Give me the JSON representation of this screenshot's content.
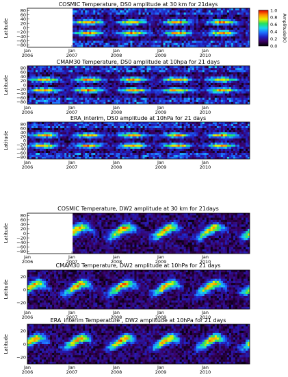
{
  "colorbar": {
    "label": "Amplitude(K)",
    "ticks": [
      "1.0",
      "0.8",
      "0.6",
      "0.4",
      "0.2",
      "0.0"
    ],
    "stops": [
      "#000000",
      "#3a0060",
      "#2020c0",
      "#1e6fff",
      "#19d2f0",
      "#21e060",
      "#e8f000",
      "#ff8c00",
      "#e00000"
    ]
  },
  "chart_data": [
    {
      "type": "heatmap",
      "title": "COSMIC Temperature, DS0 amplitude at 30 km for 21days",
      "ylabel": "Latitude",
      "y_ticks": [
        "80",
        "60",
        "40",
        "20",
        "0",
        "−20",
        "−40",
        "−60",
        "−80"
      ],
      "x_ticks": [
        {
          "month": "Jan",
          "year": "2006"
        },
        {
          "month": "Jan",
          "year": "2007"
        },
        {
          "month": "Jan",
          "year": "2008"
        },
        {
          "month": "Jan",
          "year": "2009"
        },
        {
          "month": "Jan",
          "year": "2010"
        }
      ],
      "ylim": [
        -80,
        80
      ],
      "data_start": 0.2,
      "pattern": "ds0"
    },
    {
      "type": "heatmap",
      "title": "CMAM30 Temperature, DS0 amplitude at 10hpa for 21 days",
      "ylabel": "Latitude",
      "y_ticks": [
        "80",
        "60",
        "40",
        "20",
        "0",
        "−20",
        "−40",
        "−60",
        "−80"
      ],
      "x_ticks": [
        {
          "month": "Jan",
          "year": "2006"
        },
        {
          "month": "Jan",
          "year": "2007"
        },
        {
          "month": "Jan",
          "year": "2008"
        },
        {
          "month": "Jan",
          "year": "2009"
        },
        {
          "month": "Jan",
          "year": "2010"
        }
      ],
      "ylim": [
        -80,
        80
      ],
      "data_start": 0.0,
      "pattern": "ds0"
    },
    {
      "type": "heatmap",
      "title": "ERA_interim, DS0 amplitude at 10hPa for 21 days",
      "ylabel": "Latitude",
      "y_ticks": [
        "80",
        "60",
        "40",
        "20",
        "0",
        "−20",
        "−40",
        "−60",
        "−80"
      ],
      "x_ticks": [
        {
          "month": "Jan",
          "year": "2006"
        },
        {
          "month": "Jan",
          "year": "2007"
        },
        {
          "month": "Jan",
          "year": "2008"
        },
        {
          "month": "Jan",
          "year": "2009"
        },
        {
          "month": "Jan",
          "year": "2010"
        }
      ],
      "ylim": [
        -80,
        80
      ],
      "data_start": 0.0,
      "pattern": "ds0"
    },
    {
      "type": "heatmap",
      "title": "COSMIC Temperature,  DW2 amplitude at 30 km for 21days",
      "ylabel": "Latitude",
      "y_ticks": [
        "80",
        "60",
        "40",
        "20",
        "0",
        "−20",
        "−40",
        "−60",
        "−80"
      ],
      "x_ticks": [
        {
          "month": "Jan",
          "year": "2006"
        },
        {
          "month": "Jan",
          "year": "2007"
        },
        {
          "month": "Jan",
          "year": "2008"
        },
        {
          "month": "Jan",
          "year": "2009"
        },
        {
          "month": "Jan",
          "year": "2010"
        }
      ],
      "ylim": [
        -80,
        80
      ],
      "data_start": 0.2,
      "pattern": "dw2"
    },
    {
      "type": "heatmap",
      "title": "CMAM30 Temperature, DW2 amplitude at 10hPa for 21 days",
      "ylabel": "Latitude",
      "y_ticks": [
        "20",
        "0",
        "−20"
      ],
      "x_ticks": [
        {
          "month": "Jan",
          "year": "2006"
        },
        {
          "month": "Jan",
          "year": "2007"
        },
        {
          "month": "Jan",
          "year": "2008"
        },
        {
          "month": "Jan",
          "year": "2009"
        },
        {
          "month": "Jan",
          "year": "2010"
        }
      ],
      "ylim": [
        -30,
        30
      ],
      "data_start": 0.0,
      "pattern": "dw2"
    },
    {
      "type": "heatmap",
      "title": "ERA_interim Temperature , DW2 amplitude at 10hPa for 21 days",
      "ylabel": "Latitude",
      "y_ticks": [
        "20",
        "0",
        "−20"
      ],
      "x_ticks": [
        {
          "month": "Jan",
          "year": "2006"
        },
        {
          "month": "Jan",
          "year": "2007"
        },
        {
          "month": "Jan",
          "year": "2008"
        },
        {
          "month": "Jan",
          "year": "2009"
        },
        {
          "month": "Jan",
          "year": "2010"
        }
      ],
      "ylim": [
        -30,
        30
      ],
      "data_start": 0.0,
      "pattern": "dw2"
    }
  ]
}
